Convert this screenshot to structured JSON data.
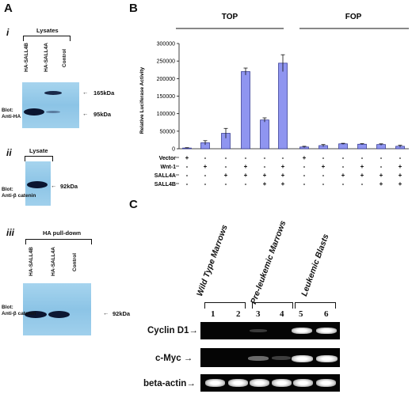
{
  "panel_a": {
    "letter": "A",
    "i": {
      "numeral": "i",
      "bracket_label": "Lysates",
      "lanes": [
        "HA-SALL4B",
        "HA-SALL4A",
        "Control"
      ],
      "blot_label": [
        "Blot:",
        "Anti-HA"
      ],
      "markers": [
        "165kDa",
        "95kDa"
      ]
    },
    "ii": {
      "numeral": "ii",
      "bracket_label": "Lysate",
      "blot_label": [
        "Blot:",
        "Anti-β catenin"
      ],
      "marker": "92kDa"
    },
    "iii": {
      "numeral": "iii",
      "bracket_label": "HA pull-down",
      "lanes": [
        "HA-SALL4B",
        "HA-SALL4A",
        "Control"
      ],
      "blot_label": [
        "Blot:",
        "Anti-β catenin"
      ],
      "marker": "92kDa"
    }
  },
  "panel_b": {
    "letter": "B",
    "group_labels": [
      "TOP",
      "FOP"
    ],
    "row_labels": [
      "Vector",
      "Wnt-1",
      "SALL4A",
      "SALL4B"
    ],
    "conditions": [
      [
        "+",
        "-",
        "-",
        "-"
      ],
      [
        "-",
        "+",
        "-",
        "-"
      ],
      [
        "-",
        "-",
        "+",
        "-"
      ],
      [
        "-",
        "+",
        "+",
        "-"
      ],
      [
        "-",
        "-",
        "+",
        "+"
      ],
      [
        "-",
        "+",
        "+",
        "+"
      ],
      [
        "+",
        "-",
        "-",
        "-"
      ],
      [
        "-",
        "+",
        "-",
        "-"
      ],
      [
        "-",
        "-",
        "+",
        "-"
      ],
      [
        "-",
        "+",
        "+",
        "-"
      ],
      [
        "-",
        "-",
        "+",
        "+"
      ],
      [
        "-",
        "+",
        "+",
        "+"
      ]
    ]
  },
  "chart_data": {
    "type": "bar",
    "ylabel": "Relative Luciferase Activity",
    "ylim": [
      0,
      300000
    ],
    "yticks": [
      0,
      50000,
      100000,
      150000,
      200000,
      250000,
      300000
    ],
    "groups": [
      "TOP",
      "FOP"
    ],
    "values": [
      2000,
      17000,
      44000,
      220000,
      82000,
      244000,
      5000,
      9000,
      14000,
      13000,
      12000,
      7000
    ],
    "errors": [
      1000,
      6000,
      14000,
      10000,
      6000,
      24000,
      2000,
      3000,
      1500,
      1500,
      2000,
      3000
    ],
    "bar_color": "#8f95f0",
    "grid": false
  },
  "panel_c": {
    "letter": "C",
    "groups": [
      "Wild Type Marrows",
      "Pre-leukemic Marrows",
      "Leukemic Blasts"
    ],
    "lanes": [
      "1",
      "2",
      "3",
      "4",
      "5",
      "6"
    ],
    "rows": [
      "Cyclin D1",
      "c-Myc",
      "beta-actin"
    ]
  },
  "colors": {
    "blot_blue": "#9ccdeb",
    "band_dark": "#0b1530",
    "bar_fill": "#8f95f0",
    "gel_background": "#050505"
  }
}
